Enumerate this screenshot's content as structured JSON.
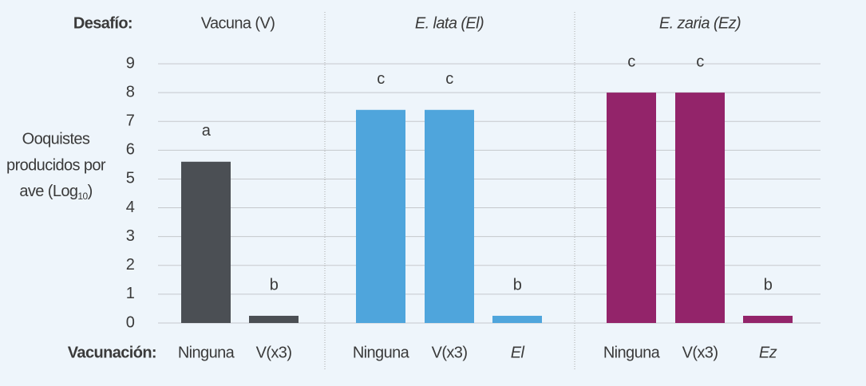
{
  "chart_data": {
    "type": "bar",
    "challenge_label": "Desafío:",
    "vaccination_label": "Vacunación:",
    "y_label": {
      "lines": [
        "Ooquistes",
        "producidos por",
        "ave (Log"
      ],
      "subscript": "10",
      "close": ")"
    },
    "ylim": [
      0,
      9
    ],
    "yticks": [
      0,
      1,
      2,
      3,
      4,
      5,
      6,
      7,
      8,
      9
    ],
    "grid": true,
    "groups": [
      {
        "name": "Vacuna (V)",
        "italic": false,
        "color": "#4b4f54",
        "categories": [
          "Ninguna",
          "V(x3)"
        ],
        "category_italic": [
          false,
          false
        ],
        "values": [
          5.6,
          0.25
        ],
        "annotations": [
          "a",
          "b"
        ]
      },
      {
        "name": "E. lata (El)",
        "italic": true,
        "color": "#4fa5dc",
        "categories": [
          "Ninguna",
          "V(x3)",
          "El"
        ],
        "category_italic": [
          false,
          false,
          true
        ],
        "values": [
          7.4,
          7.4,
          0.25
        ],
        "annotations": [
          "c",
          "c",
          "b"
        ]
      },
      {
        "name": "E. zaria (Ez)",
        "italic": true,
        "color": "#93246a",
        "categories": [
          "Ninguna",
          "V(x3)",
          "Ez"
        ],
        "category_italic": [
          false,
          false,
          true
        ],
        "values": [
          8.0,
          8.0,
          0.25
        ],
        "annotations": [
          "c",
          "c",
          "b"
        ]
      }
    ]
  }
}
